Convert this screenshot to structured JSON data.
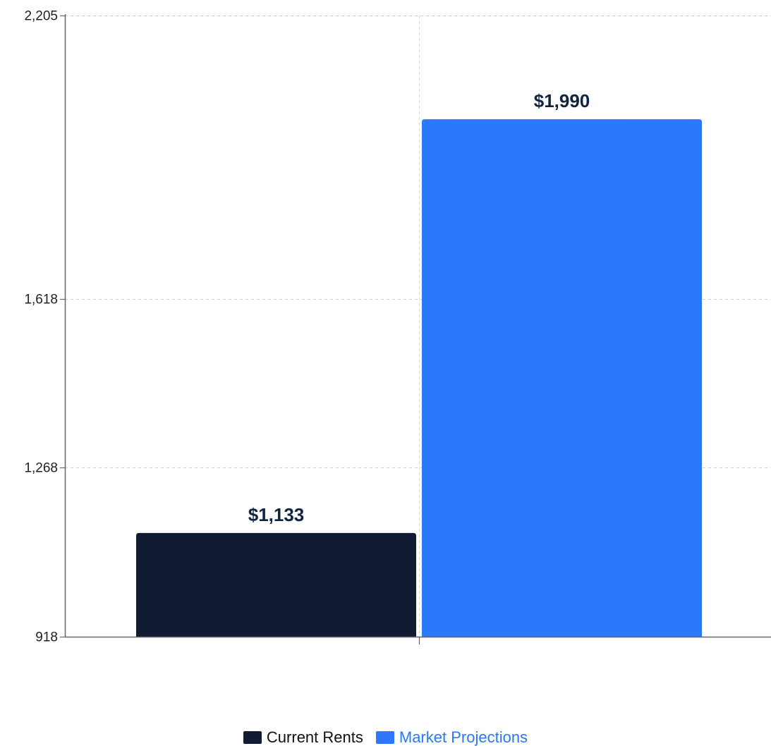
{
  "chart_data": {
    "type": "bar",
    "categories": [
      "Current Rents",
      "Market Projections"
    ],
    "series": [
      {
        "name": "Current Rents",
        "value": 1133,
        "label": "$1,133",
        "color": "#111c33"
      },
      {
        "name": "Market Projections",
        "value": 1990,
        "label": "$1,990",
        "color": "#2b78fb"
      }
    ],
    "y_ticks": [
      {
        "value": 2205,
        "label": "2,205"
      },
      {
        "value": 1618,
        "label": "1,618"
      },
      {
        "value": 1268,
        "label": "1,268"
      },
      {
        "value": 918,
        "label": "918"
      }
    ],
    "ylim": [
      918,
      2205
    ],
    "grid": true,
    "legend_position": "bottom-center",
    "title": "",
    "xlabel": "",
    "ylabel": ""
  }
}
